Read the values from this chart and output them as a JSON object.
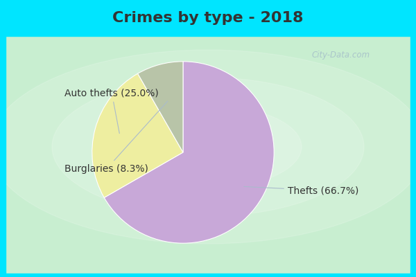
{
  "title": "Crimes by type - 2018",
  "slices": [
    {
      "label": "Thefts",
      "pct": 66.7,
      "color": "#C8A8D8"
    },
    {
      "label": "Auto thefts",
      "pct": 25.0,
      "color": "#EEEEA0"
    },
    {
      "label": "Burglaries",
      "pct": 8.3,
      "color": "#B8C4A8"
    }
  ],
  "background_top": "#00E5FF",
  "background_main_outer": "#C8EED8",
  "background_main_inner": "#E8F8EE",
  "title_fontsize": 16,
  "label_fontsize": 10,
  "watermark": "City-Data.com",
  "title_color": "#333333",
  "label_color": "#333333",
  "border_width": 5,
  "border_color": "#00E5FF"
}
